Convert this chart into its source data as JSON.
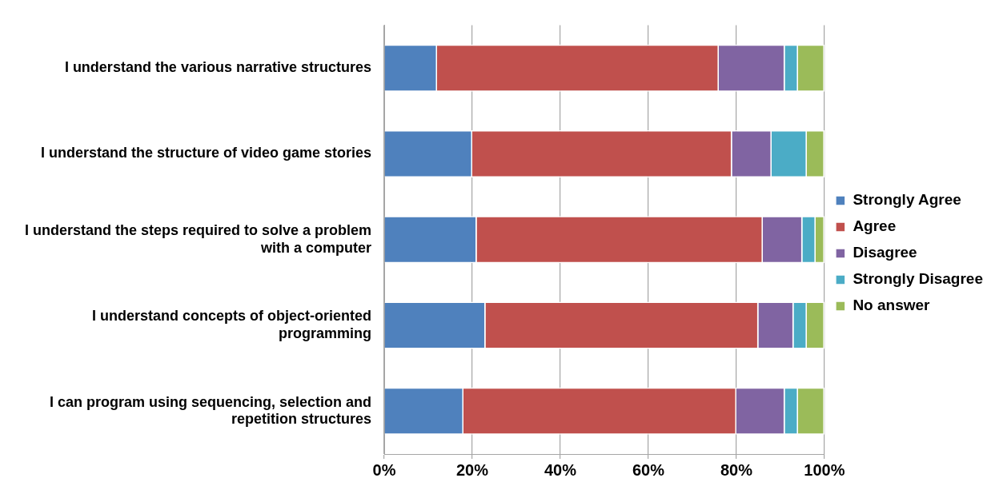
{
  "chart_data": {
    "type": "bar",
    "orientation": "horizontal",
    "stacked": true,
    "categories": [
      "I understand the various narrative structures",
      "I understand the structure of video game stories",
      "I understand the steps required to solve a problem with a computer",
      "I understand concepts of object-oriented programming",
      "I can program using sequencing, selection and repetition structures"
    ],
    "series": [
      {
        "name": "Strongly Agree",
        "color": "#4f81bd",
        "values": [
          12,
          20,
          21,
          23,
          18
        ]
      },
      {
        "name": "Agree",
        "color": "#c0504d",
        "values": [
          64,
          59,
          65,
          62,
          62
        ]
      },
      {
        "name": "Disagree",
        "color": "#8064a2",
        "values": [
          15,
          9,
          9,
          8,
          11
        ]
      },
      {
        "name": "Strongly Disagree",
        "color": "#4bacc6",
        "values": [
          3,
          8,
          3,
          3,
          3
        ]
      },
      {
        "name": "No answer",
        "color": "#9bbb59",
        "values": [
          6,
          4,
          2,
          4,
          6
        ]
      }
    ],
    "xlim": [
      0,
      100
    ],
    "xticks": [
      {
        "value": 0,
        "label": "0%"
      },
      {
        "value": 20,
        "label": "20%"
      },
      {
        "value": 40,
        "label": "40%"
      },
      {
        "value": 60,
        "label": "60%"
      },
      {
        "value": 80,
        "label": "80%"
      },
      {
        "value": 100,
        "label": "100%"
      }
    ],
    "grid": "x",
    "legend": "right"
  }
}
